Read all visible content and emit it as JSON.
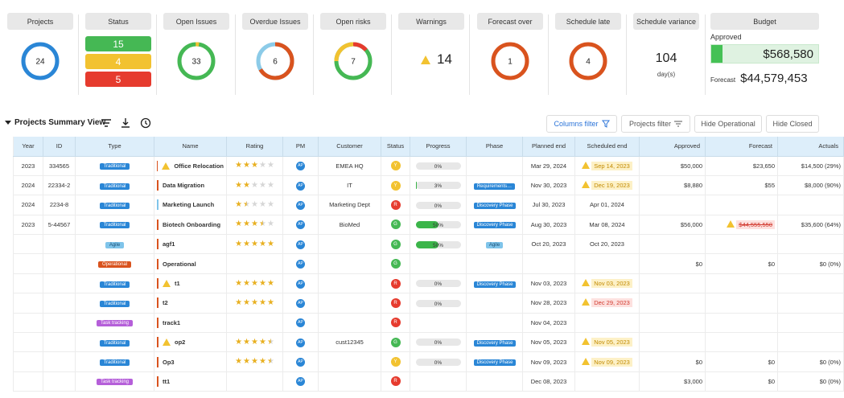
{
  "kpis": {
    "projects": {
      "label": "Projects",
      "value": "24"
    },
    "status": {
      "label": "Status",
      "green": "15",
      "yellow": "4",
      "red": "5"
    },
    "open_issues": {
      "label": "Open Issues",
      "value": "33"
    },
    "overdue_issues": {
      "label": "Overdue Issues",
      "value": "6"
    },
    "open_risks": {
      "label": "Open risks",
      "value": "7"
    },
    "warnings": {
      "label": "Warnings",
      "value": "14"
    },
    "forecast_over": {
      "label": "Forecast over",
      "value": "1"
    },
    "schedule_late": {
      "label": "Schedule late",
      "value": "4"
    },
    "schedule_variance": {
      "label": "Schedule variance",
      "value": "104",
      "unit": "day(s)"
    },
    "budget": {
      "label": "Budget",
      "approved_label": "Approved",
      "approved": "$568,580",
      "forecast_label": "Forecast",
      "forecast": "$44,579,453"
    }
  },
  "toolbar": {
    "title": "Projects Summary View",
    "columns_filter": "Columns filter",
    "projects_filter": "Projects filter",
    "hide_operational": "Hide Operational",
    "hide_closed": "Hide Closed"
  },
  "columns": [
    "Year",
    "ID",
    "Type",
    "Name",
    "Rating",
    "PM",
    "Customer",
    "Status",
    "Progress",
    "Phase",
    "Planned end",
    "Scheduled end",
    "Approved",
    "Forecast",
    "Actuals"
  ],
  "rows": [
    {
      "year": "2023",
      "id": "334565",
      "type": "Traditional",
      "name": "Office Relocation",
      "warn": true,
      "rating": 3,
      "pm": "AP",
      "customer": "EMEA HQ",
      "status": "Y",
      "progress": 0,
      "progress_label": "0%",
      "phase": "",
      "planned_end": "Mar 29, 2024",
      "scheduled_end": "Sep 14, 2023",
      "sched_state": "late",
      "approved": "$50,000",
      "forecast": "$23,650",
      "forecast_over": false,
      "actuals": "$14,500 (29%)"
    },
    {
      "year": "2024",
      "id": "22334-2",
      "type": "Traditional",
      "name": "Data Migration",
      "warn": false,
      "rating": 2,
      "pm": "AP",
      "customer": "IT",
      "status": "Y",
      "progress": 3,
      "progress_label": "3%",
      "phase": "Requirements…",
      "planned_end": "Nov 30, 2023",
      "scheduled_end": "Dec 19, 2023",
      "sched_state": "late",
      "approved": "$8,880",
      "forecast": "$55",
      "forecast_over": false,
      "actuals": "$8,000 (90%)"
    },
    {
      "year": "2024",
      "id": "2234-8",
      "type": "Traditional",
      "name": "Marketing Launch",
      "warn": false,
      "flag": "blue",
      "rating": 1.5,
      "pm": "AP",
      "customer": "Marketing Dept",
      "status": "R",
      "progress": 0,
      "progress_label": "0%",
      "phase": "Discovery Phase",
      "planned_end": "Jul 30, 2023",
      "scheduled_end": "Apr 01, 2024",
      "sched_state": "",
      "approved": "",
      "forecast": "",
      "forecast_over": false,
      "actuals": ""
    },
    {
      "year": "2023",
      "id": "5-44567",
      "type": "Traditional",
      "name": "Biotech Onboarding",
      "warn": false,
      "rating": 3.5,
      "pm": "AP",
      "customer": "BioMed",
      "status": "G",
      "progress": 50,
      "progress_label": "50%",
      "phase": "Discovery Phase",
      "planned_end": "Aug 30, 2023",
      "scheduled_end": "Mar 08, 2024",
      "sched_state": "",
      "approved": "$56,000",
      "forecast": "$44,555,550",
      "forecast_over": true,
      "actuals": "$35,600 (64%)"
    },
    {
      "year": "",
      "id": "",
      "type": "Agile",
      "name": "agf1",
      "warn": false,
      "rating": 5,
      "pm": "AP",
      "customer": "",
      "status": "G",
      "progress": 50,
      "progress_label": "50%",
      "phase": "Agile",
      "phase_agile": true,
      "planned_end": "Oct 20, 2023",
      "scheduled_end": "Oct 20, 2023",
      "sched_state": "",
      "approved": "",
      "forecast": "",
      "forecast_over": false,
      "actuals": ""
    },
    {
      "year": "",
      "id": "",
      "type": "Operational",
      "name": "Operational",
      "warn": false,
      "rating": -1,
      "pm": "AP",
      "customer": "",
      "status": "G",
      "progress": -1,
      "progress_label": "",
      "phase": "",
      "planned_end": "",
      "scheduled_end": "",
      "sched_state": "",
      "approved": "$0",
      "forecast": "$0",
      "forecast_over": false,
      "actuals": "$0 (0%)"
    },
    {
      "year": "",
      "id": "",
      "type": "Traditional",
      "name": "t1",
      "warn": true,
      "rating": 5,
      "pm": "AP",
      "customer": "",
      "status": "R",
      "progress": 0,
      "progress_label": "0%",
      "phase": "Discovery Phase",
      "planned_end": "Nov 03, 2023",
      "scheduled_end": "Nov 03, 2023",
      "sched_state": "late",
      "approved": "",
      "forecast": "",
      "forecast_over": false,
      "actuals": ""
    },
    {
      "year": "",
      "id": "",
      "type": "Traditional",
      "name": "t2",
      "warn": false,
      "rating": 5,
      "pm": "AP",
      "customer": "",
      "status": "R",
      "progress": 0,
      "progress_label": "0%",
      "phase": "",
      "planned_end": "Nov 28, 2023",
      "scheduled_end": "Dec 29, 2023",
      "sched_state": "red",
      "approved": "",
      "forecast": "",
      "forecast_over": false,
      "actuals": ""
    },
    {
      "year": "",
      "id": "",
      "type": "Task tracking",
      "name": "track1",
      "warn": false,
      "rating": -1,
      "pm": "AP",
      "customer": "",
      "status": "R",
      "progress": -1,
      "progress_label": "",
      "phase": "",
      "planned_end": "Nov 04, 2023",
      "scheduled_end": "",
      "sched_state": "",
      "approved": "",
      "forecast": "",
      "forecast_over": false,
      "actuals": ""
    },
    {
      "year": "",
      "id": "",
      "type": "Traditional",
      "name": "op2",
      "warn": true,
      "rating": 4.5,
      "pm": "AP",
      "customer": "cust12345",
      "status": "G",
      "progress": 0,
      "progress_label": "0%",
      "phase": "Discovery Phase",
      "planned_end": "Nov 05, 2023",
      "scheduled_end": "Nov 05, 2023",
      "sched_state": "late",
      "approved": "",
      "forecast": "",
      "forecast_over": false,
      "actuals": ""
    },
    {
      "year": "",
      "id": "",
      "type": "Traditional",
      "name": "Op3",
      "warn": false,
      "rating": 4.5,
      "pm": "AP",
      "customer": "",
      "status": "Y",
      "progress": 0,
      "progress_label": "0%",
      "phase": "Discovery Phase",
      "planned_end": "Nov 09, 2023",
      "scheduled_end": "Nov 09, 2023",
      "sched_state": "late",
      "approved": "$0",
      "forecast": "$0",
      "forecast_over": false,
      "actuals": "$0 (0%)"
    },
    {
      "year": "",
      "id": "",
      "type": "Task tracking",
      "name": "tt1",
      "warn": false,
      "rating": -1,
      "pm": "AP",
      "customer": "",
      "status": "R",
      "progress": -1,
      "progress_label": "",
      "phase": "",
      "planned_end": "Dec 08, 2023",
      "scheduled_end": "",
      "sched_state": "",
      "approved": "$3,000",
      "forecast": "$0",
      "forecast_over": false,
      "actuals": "$0 (0%)"
    }
  ],
  "colors": {
    "blue": "#2a86d6",
    "green": "#45b854",
    "yellow": "#f2c230",
    "red": "#e63b2e",
    "orange": "#d9531e",
    "light_blue": "#8ccbe8"
  }
}
